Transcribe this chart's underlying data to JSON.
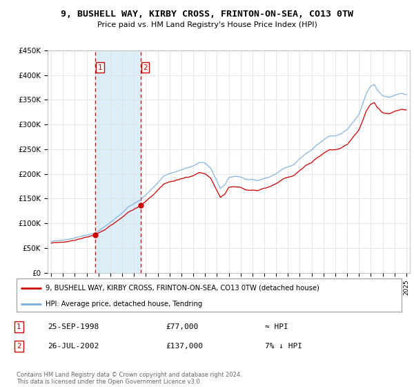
{
  "title": "9, BUSHELL WAY, KIRBY CROSS, FRINTON-ON-SEA, CO13 0TW",
  "subtitle": "Price paid vs. HM Land Registry's House Price Index (HPI)",
  "sale1_date": 1998.75,
  "sale1_price": 77000,
  "sale1_label": "1",
  "sale1_date_str": "25-SEP-1998",
  "sale1_price_str": "£77,000",
  "sale1_rel": "≈ HPI",
  "sale2_date": 2002.55,
  "sale2_price": 137000,
  "sale2_label": "2",
  "sale2_date_str": "26-JUL-2002",
  "sale2_price_str": "£137,000",
  "sale2_rel": "7% ↓ HPI",
  "legend_line1": "9, BUSHELL WAY, KIRBY CROSS, FRINTON-ON-SEA, CO13 0TW (detached house)",
  "legend_line2": "HPI: Average price, detached house, Tendring",
  "footer": "Contains HM Land Registry data © Crown copyright and database right 2024.\nThis data is licensed under the Open Government Licence v3.0.",
  "red_color": "#cc0000",
  "blue_color": "#7aaddb",
  "shade_color": "#dceef8",
  "ylim": [
    0,
    450000
  ],
  "xlim": [
    1994.7,
    2025.3
  ]
}
